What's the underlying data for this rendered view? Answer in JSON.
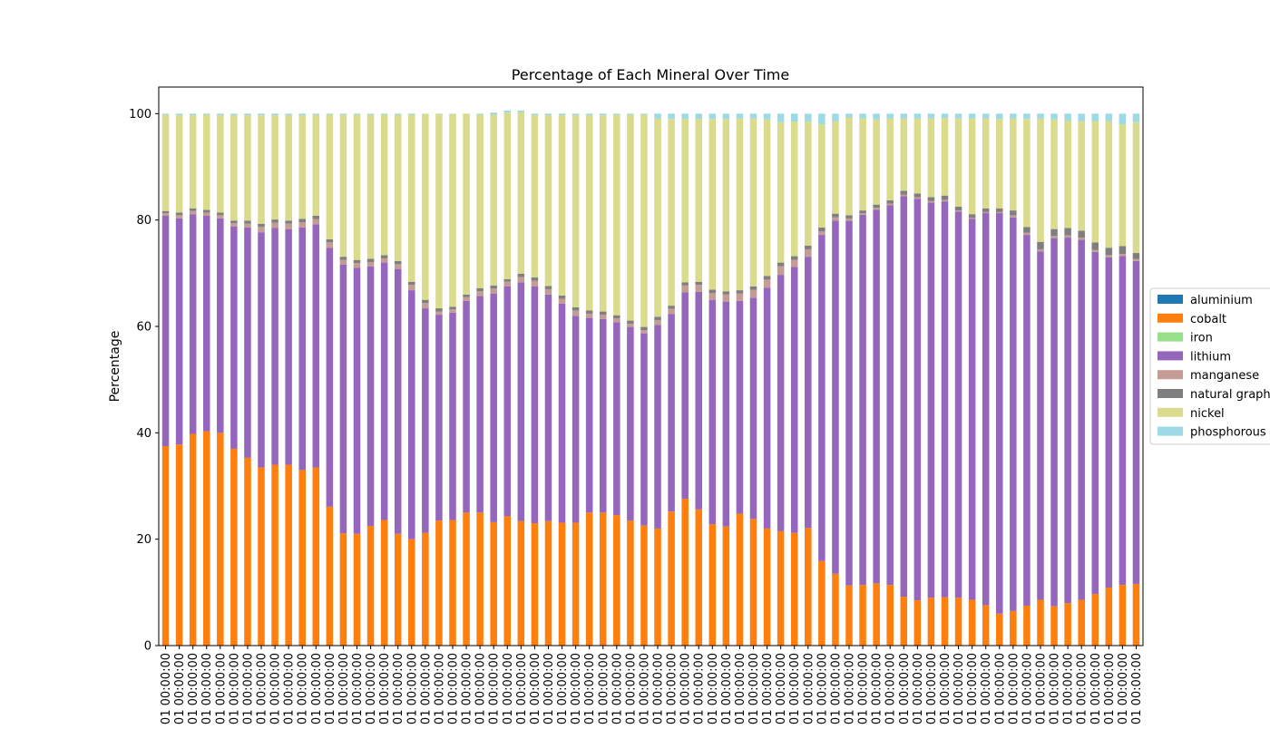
{
  "chart_data": {
    "type": "bar",
    "stacked": true,
    "title": "Percentage of Each Mineral Over Time",
    "xlabel": "",
    "ylabel": "Percentage",
    "ylim": [
      0,
      105
    ],
    "yticks": [
      0,
      20,
      40,
      60,
      80,
      100
    ],
    "grid": false,
    "legend_position": "center-right",
    "category_tick_label": "01 00:00:00",
    "category_count": 72,
    "series": [
      {
        "name": "aluminium",
        "color": "#1f77b4",
        "values": [
          0,
          0,
          0,
          0,
          0,
          0,
          0,
          0,
          0,
          0,
          0,
          0,
          0,
          0,
          0,
          0,
          0,
          0,
          0,
          0,
          0,
          0,
          0,
          0,
          0,
          0,
          0,
          0,
          0,
          0,
          0,
          0,
          0,
          0,
          0,
          0,
          0,
          0,
          0,
          0,
          0,
          0,
          0,
          0,
          0,
          0,
          0,
          0,
          0,
          0,
          0,
          0,
          0,
          0,
          0,
          0,
          0,
          0,
          0,
          0,
          0,
          0,
          0,
          0,
          0,
          0,
          0,
          0,
          0,
          0,
          0,
          0
        ]
      },
      {
        "name": "cobalt",
        "color": "#ff7f0e",
        "values": [
          37.5,
          37.8,
          39.8,
          40.3,
          40.0,
          37.0,
          35.3,
          33.5,
          34.0,
          34.0,
          33.0,
          33.5,
          26.1,
          21.1,
          21.0,
          22.5,
          23.6,
          21.0,
          20.0,
          21.2,
          23.5,
          23.6,
          25.0,
          25.0,
          23.2,
          24.3,
          23.4,
          23.0,
          23.4,
          23.1,
          23.1,
          25.0,
          25.0,
          24.5,
          23.5,
          22.6,
          22.0,
          25.2,
          27.6,
          25.6,
          22.8,
          22.4,
          24.8,
          23.8,
          22.0,
          21.5,
          21.2,
          22.1,
          15.9,
          13.5,
          11.3,
          11.4,
          11.7,
          11.4,
          9.2,
          8.5,
          9.0,
          9.1,
          9.0,
          8.6,
          7.6,
          6.0,
          6.5,
          7.5,
          8.6,
          7.4,
          8.0,
          8.6,
          9.7,
          10.9,
          11.4,
          11.6
        ]
      },
      {
        "name": "iron",
        "color": "#98df8a",
        "values": [
          0,
          0,
          0,
          0,
          0,
          0,
          0,
          0,
          0,
          0,
          0,
          0,
          0,
          0,
          0,
          0,
          0,
          0,
          0,
          0,
          0,
          0,
          0,
          0,
          0,
          0,
          0,
          0,
          0,
          0,
          0,
          0,
          0,
          0,
          0,
          0,
          0,
          0,
          0,
          0,
          0,
          0,
          0,
          0,
          0,
          0,
          0,
          0,
          0,
          0,
          0,
          0,
          0,
          0,
          0,
          0,
          0,
          0,
          0,
          0,
          0,
          0,
          0,
          0,
          0,
          0,
          0,
          0,
          0,
          0,
          0,
          0
        ]
      },
      {
        "name": "lithium",
        "color": "#9467bd",
        "values": [
          43.3,
          42.5,
          41.3,
          40.5,
          40.3,
          41.8,
          43.3,
          44.2,
          44.5,
          44.3,
          45.6,
          45.7,
          48.7,
          50.5,
          50.0,
          48.8,
          48.4,
          49.8,
          46.8,
          42.2,
          38.7,
          39.0,
          39.8,
          40.7,
          43.0,
          43.2,
          44.9,
          44.5,
          42.6,
          41.2,
          38.9,
          36.6,
          36.4,
          36.3,
          36.4,
          36.1,
          38.3,
          37.1,
          38.8,
          40.9,
          42.2,
          42.2,
          40.0,
          41.6,
          45.3,
          48.2,
          50.0,
          51.0,
          61.3,
          66.4,
          68.6,
          69.6,
          70.2,
          71.4,
          75.3,
          75.5,
          74.3,
          74.4,
          72.6,
          71.6,
          73.7,
          75.3,
          74.0,
          69.7,
          65.5,
          69.2,
          68.7,
          67.7,
          64.3,
          62.1,
          61.8,
          60.7
        ]
      },
      {
        "name": "manganese",
        "color": "#c49c94",
        "values": [
          0.5,
          0.6,
          0.6,
          0.6,
          0.6,
          0.6,
          0.7,
          1.0,
          1.0,
          1.0,
          1.0,
          1.0,
          1.0,
          0.9,
          0.9,
          0.8,
          0.8,
          0.9,
          1.0,
          1.0,
          0.6,
          0.6,
          0.7,
          0.9,
          0.9,
          0.9,
          1.0,
          1.1,
          1.0,
          0.9,
          1.0,
          0.8,
          0.8,
          0.7,
          0.6,
          0.6,
          0.9,
          1.0,
          1.3,
          1.3,
          1.3,
          1.4,
          1.4,
          1.5,
          1.5,
          1.6,
          1.3,
          1.4,
          0.7,
          0.6,
          0.4,
          0.3,
          0.4,
          0.3,
          0.3,
          0.3,
          0.3,
          0.3,
          0.2,
          0.2,
          0.2,
          0.2,
          0.4,
          0.4,
          0.4,
          0.4,
          0.4,
          0.4,
          0.4,
          0.4,
          0.4,
          0.4
        ]
      },
      {
        "name": "natural graphite",
        "color": "#7f7f7f",
        "values": [
          0.4,
          0.5,
          0.5,
          0.5,
          0.5,
          0.5,
          0.6,
          0.6,
          0.6,
          0.6,
          0.6,
          0.6,
          0.6,
          0.6,
          0.6,
          0.6,
          0.6,
          0.6,
          0.6,
          0.6,
          0.6,
          0.5,
          0.5,
          0.6,
          0.6,
          0.5,
          0.6,
          0.6,
          0.6,
          0.6,
          0.6,
          0.6,
          0.6,
          0.6,
          0.6,
          0.6,
          0.6,
          0.6,
          0.6,
          0.6,
          0.6,
          0.6,
          0.6,
          0.6,
          0.7,
          0.7,
          0.7,
          0.7,
          0.7,
          0.7,
          0.6,
          0.5,
          0.6,
          0.6,
          0.7,
          0.7,
          0.7,
          0.8,
          0.7,
          0.7,
          0.7,
          0.7,
          0.9,
          1.1,
          1.4,
          1.3,
          1.4,
          1.3,
          1.4,
          1.4,
          1.5,
          1.1
        ]
      },
      {
        "name": "nickel",
        "color": "#dbdb8d",
        "values": [
          18.1,
          18.3,
          17.5,
          17.9,
          18.3,
          19.8,
          19.8,
          20.4,
          19.6,
          19.8,
          19.5,
          19.0,
          23.4,
          26.7,
          27.3,
          27.1,
          26.4,
          27.5,
          31.4,
          34.9,
          36.5,
          36.2,
          34.0,
          32.6,
          32.1,
          31.3,
          30.4,
          30.5,
          32.1,
          33.9,
          36.1,
          36.7,
          36.9,
          37.7,
          38.7,
          39.9,
          37.3,
          35.1,
          30.7,
          30.6,
          32.1,
          32.4,
          32.3,
          31.6,
          29.4,
          26.4,
          25.3,
          23.3,
          19.4,
          17.4,
          18.4,
          17.3,
          16.0,
          15.4,
          13.6,
          14.1,
          14.8,
          14.6,
          16.6,
          18.0,
          16.9,
          16.8,
          17.3,
          20.3,
          23.2,
          20.6,
          20.2,
          20.6,
          22.8,
          23.8,
          22.9,
          24.6
        ]
      },
      {
        "name": "phosphorous",
        "color": "#9edae5",
        "values": [
          0.2,
          0.3,
          0.3,
          0.2,
          0.3,
          0.3,
          0.3,
          0.3,
          0.3,
          0.3,
          0.3,
          0.2,
          0.2,
          0.2,
          0.2,
          0.2,
          0.2,
          0.2,
          0.2,
          0.1,
          0.1,
          0.1,
          0.0,
          0.2,
          0.4,
          0.4,
          0.3,
          0.3,
          0.3,
          0.3,
          0.3,
          0.3,
          0.3,
          0.2,
          0.2,
          0.2,
          0.9,
          1.0,
          1.0,
          1.0,
          1.0,
          1.0,
          0.9,
          0.9,
          1.1,
          1.6,
          1.5,
          1.5,
          2.0,
          1.4,
          0.7,
          0.9,
          1.1,
          0.9,
          0.9,
          0.9,
          0.9,
          0.8,
          0.9,
          0.9,
          0.9,
          1.0,
          0.9,
          1.0,
          0.9,
          1.1,
          1.3,
          1.4,
          1.4,
          1.4,
          2.0,
          1.6
        ]
      }
    ]
  }
}
